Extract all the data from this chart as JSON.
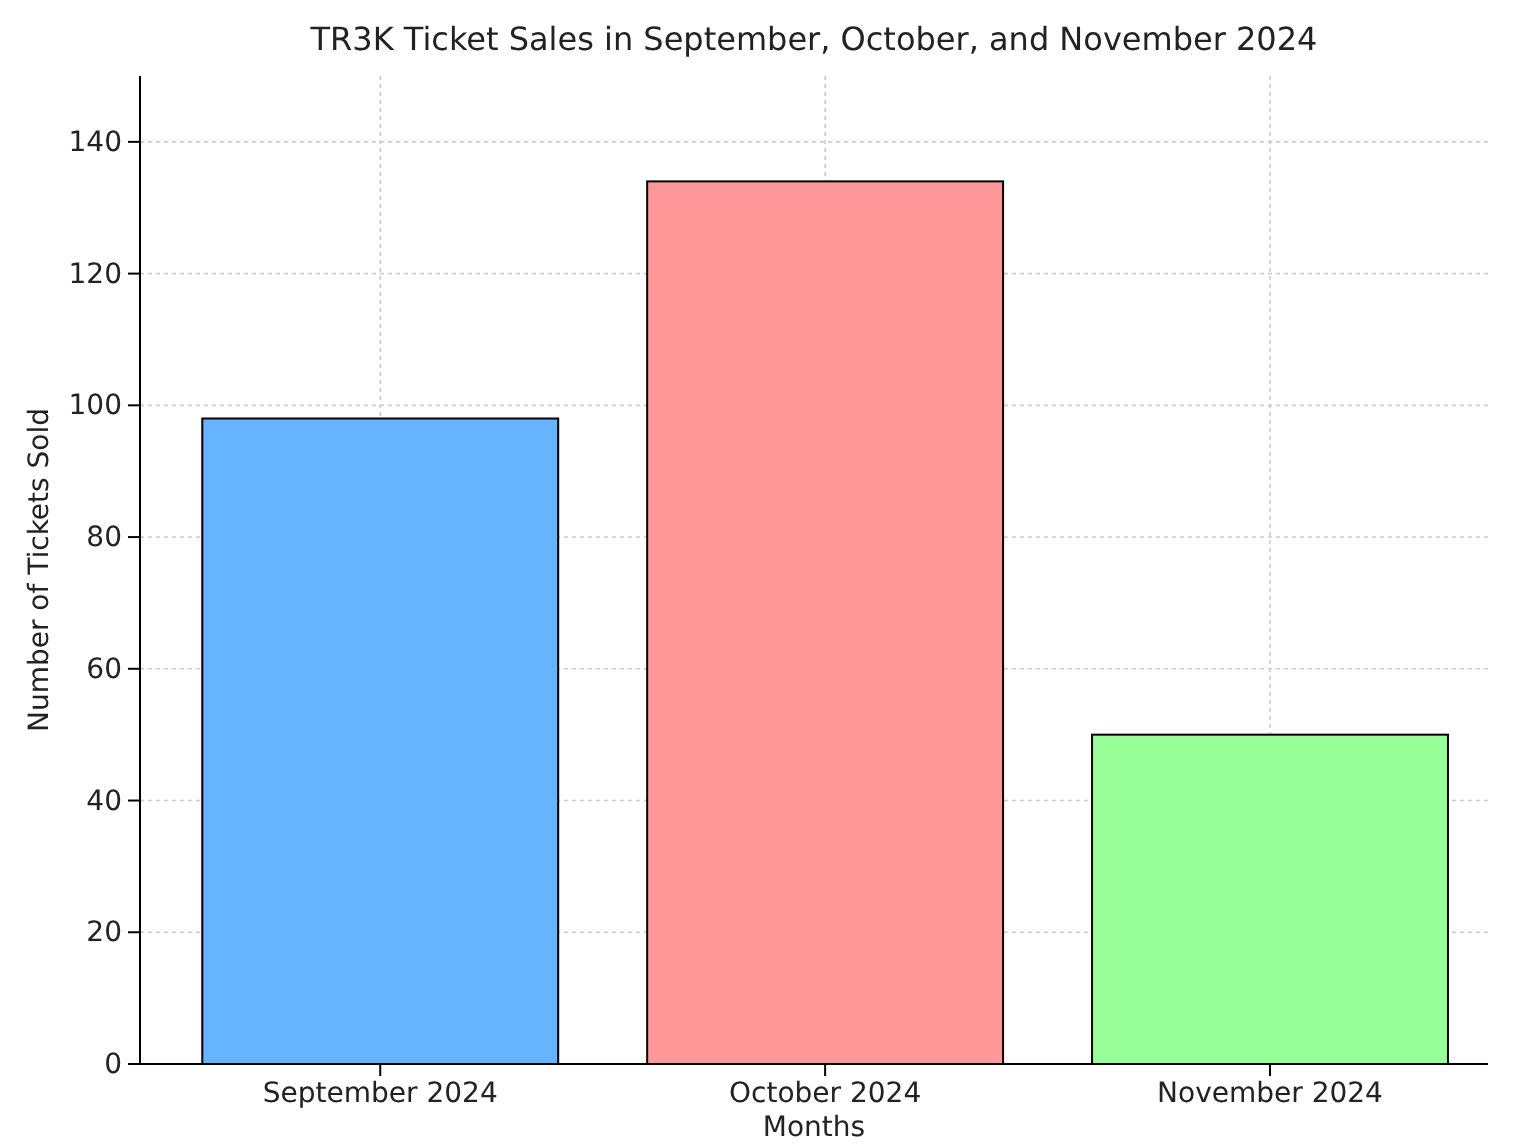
{
  "chart_data": {
    "type": "bar",
    "title": "TR3K Ticket Sales in September, October, and November 2024",
    "xlabel": "Months",
    "ylabel": "Number of Tickets Sold",
    "categories": [
      "September 2024",
      "October 2024",
      "November 2024"
    ],
    "values": [
      98,
      134,
      50
    ],
    "colors": [
      "#66b3ff",
      "#ff9999",
      "#99ff99"
    ],
    "ylim": [
      0,
      150
    ],
    "yticks": [
      0,
      20,
      40,
      60,
      80,
      100,
      120,
      140
    ],
    "grid": true
  }
}
